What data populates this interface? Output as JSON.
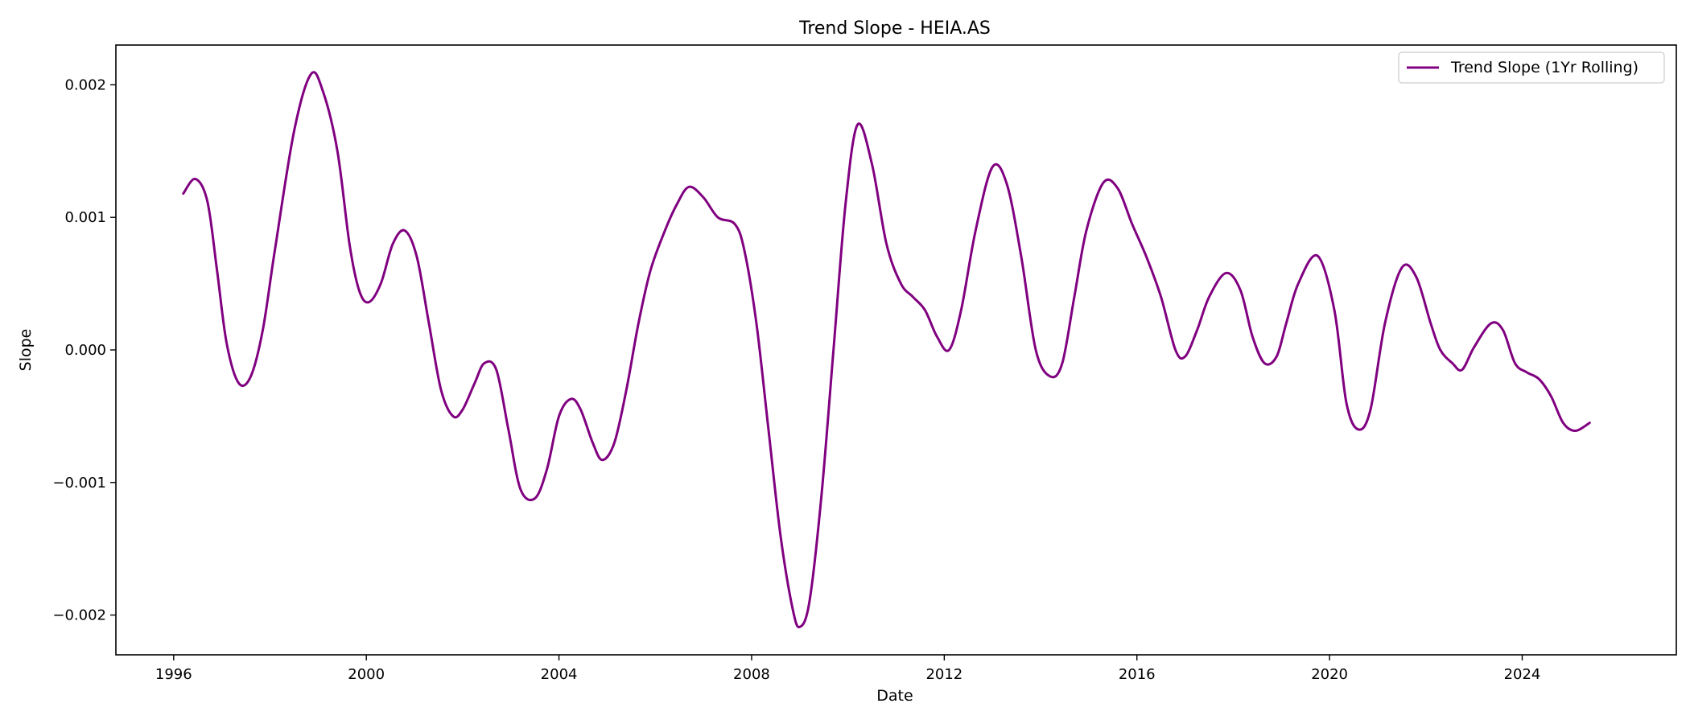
{
  "chart_data": {
    "type": "line",
    "title": "Trend Slope - HEIA.AS",
    "xlabel": "Date",
    "ylabel": "Slope",
    "xlim": [
      1994.8,
      2027.2
    ],
    "ylim": [
      -0.0023,
      0.0023
    ],
    "x_ticks": [
      1996,
      2000,
      2004,
      2008,
      2012,
      2016,
      2020,
      2024
    ],
    "x_tick_labels": [
      "1996",
      "2000",
      "2004",
      "2008",
      "2012",
      "2016",
      "2020",
      "2024"
    ],
    "y_ticks": [
      -0.002,
      -0.001,
      0.0,
      0.001,
      0.002
    ],
    "y_tick_labels": [
      "−0.002",
      "−0.001",
      "0.000",
      "0.001",
      "0.002"
    ],
    "grid": false,
    "legend": {
      "position": "top-right",
      "entries": [
        "Trend Slope (1Yr Rolling)"
      ]
    },
    "series": [
      {
        "name": "Trend Slope (1Yr Rolling)",
        "color": "#800080",
        "x": [
          1996.2,
          1996.45,
          1996.7,
          1996.9,
          1997.1,
          1997.35,
          1997.6,
          1997.85,
          1998.1,
          1998.5,
          1998.85,
          1999.1,
          1999.4,
          1999.65,
          1999.85,
          2000.05,
          2000.3,
          2000.55,
          2000.8,
          2001.05,
          2001.3,
          2001.55,
          2001.8,
          2002.0,
          2002.25,
          2002.45,
          2002.7,
          2002.95,
          2003.2,
          2003.5,
          2003.75,
          2004.0,
          2004.25,
          2004.45,
          2004.7,
          2004.9,
          2005.15,
          2005.4,
          2005.65,
          2005.9,
          2006.2,
          2006.45,
          2006.7,
          2007.0,
          2007.3,
          2007.65,
          2007.85,
          2008.1,
          2008.35,
          2008.6,
          2008.85,
          2009.0,
          2009.2,
          2009.45,
          2009.7,
          2009.95,
          2010.2,
          2010.5,
          2010.8,
          2011.1,
          2011.35,
          2011.6,
          2011.85,
          2012.1,
          2012.35,
          2012.65,
          2013.0,
          2013.3,
          2013.6,
          2013.9,
          2014.2,
          2014.45,
          2014.7,
          2014.95,
          2015.3,
          2015.6,
          2015.9,
          2016.2,
          2016.5,
          2016.8,
          2017.0,
          2017.25,
          2017.5,
          2017.85,
          2018.15,
          2018.4,
          2018.65,
          2018.9,
          2019.1,
          2019.35,
          2019.75,
          2020.1,
          2020.35,
          2020.6,
          2020.85,
          2021.15,
          2021.5,
          2021.8,
          2022.1,
          2022.3,
          2022.55,
          2022.75,
          2023.0,
          2023.35,
          2023.6,
          2023.85,
          2024.1,
          2024.35,
          2024.6,
          2024.85,
          2025.1,
          2025.4
        ],
        "y": [
          0.00118,
          0.00129,
          0.00112,
          0.0006,
          5e-05,
          -0.00025,
          -0.0002,
          0.00015,
          0.00075,
          0.00165,
          0.00208,
          0.00195,
          0.0015,
          0.0008,
          0.00045,
          0.00036,
          0.0005,
          0.0008,
          0.0009,
          0.0007,
          0.0002,
          -0.0003,
          -0.0005,
          -0.00045,
          -0.00025,
          -0.0001,
          -0.00015,
          -0.0006,
          -0.00105,
          -0.00112,
          -0.0009,
          -0.0005,
          -0.00037,
          -0.00045,
          -0.0007,
          -0.00083,
          -0.0007,
          -0.0003,
          0.0002,
          0.0006,
          0.0009,
          0.0011,
          0.00123,
          0.00115,
          0.001,
          0.00095,
          0.00075,
          0.0002,
          -0.0006,
          -0.0014,
          -0.00195,
          -0.00209,
          -0.0019,
          -0.0011,
          0.0,
          0.0011,
          0.0017,
          0.0014,
          0.0008,
          0.0005,
          0.0004,
          0.0003,
          0.0001,
          0.0,
          0.0003,
          0.0009,
          0.00138,
          0.00125,
          0.0007,
          0.0,
          -0.0002,
          -0.0001,
          0.0004,
          0.0009,
          0.00126,
          0.00122,
          0.00095,
          0.0007,
          0.0004,
          0.0,
          -5e-05,
          0.00015,
          0.0004,
          0.00058,
          0.00045,
          0.0001,
          -0.0001,
          -5e-05,
          0.0002,
          0.0005,
          0.00071,
          0.0003,
          -0.0004,
          -0.0006,
          -0.00045,
          0.0002,
          0.00062,
          0.00055,
          0.0002,
          0.0,
          -0.0001,
          -0.00015,
          2e-05,
          0.0002,
          0.00015,
          -0.0001,
          -0.00017,
          -0.00022,
          -0.00035,
          -0.00055,
          -0.00061,
          -0.00055
        ]
      }
    ]
  }
}
